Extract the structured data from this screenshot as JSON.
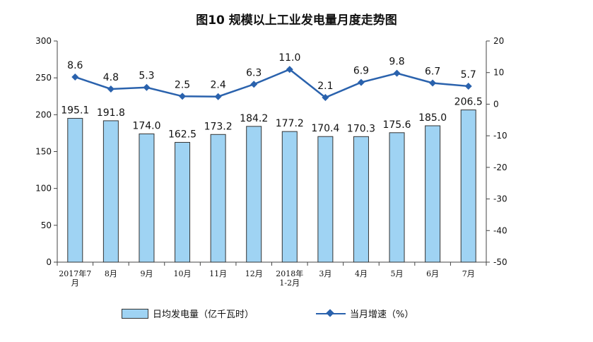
{
  "chart_data": {
    "type": "bar+line",
    "title": "图10  规模以上工业发电量月度走势图",
    "categories": [
      "2017年7月",
      "8月",
      "9月",
      "10月",
      "11月",
      "12月",
      "2018年1-2月",
      "3月",
      "4月",
      "5月",
      "6月",
      "7月"
    ],
    "category_lines": [
      [
        "2017年7",
        "月"
      ],
      [
        "8月"
      ],
      [
        "9月"
      ],
      [
        "10月"
      ],
      [
        "11月"
      ],
      [
        "12月"
      ],
      [
        "2018年",
        "1-2月"
      ],
      [
        "3月"
      ],
      [
        "4月"
      ],
      [
        "5月"
      ],
      [
        "6月"
      ],
      [
        "7月"
      ]
    ],
    "series": [
      {
        "name": "日均发电量（亿千瓦时）",
        "type": "bar",
        "axis": "left",
        "values": [
          195.1,
          191.8,
          174.0,
          162.5,
          173.2,
          184.2,
          177.2,
          170.4,
          170.3,
          175.6,
          185.0,
          206.5
        ],
        "labels": [
          "195.1",
          "191.8",
          "174.0",
          "162.5",
          "173.2",
          "184.2",
          "177.2",
          "170.4",
          "170.3",
          "175.6",
          "185.0",
          "206.5"
        ]
      },
      {
        "name": "当月增速（%）",
        "type": "line",
        "axis": "right",
        "values": [
          8.6,
          4.8,
          5.3,
          2.5,
          2.4,
          6.3,
          11.0,
          2.1,
          6.9,
          9.8,
          6.7,
          5.7
        ],
        "labels": [
          "8.6",
          "4.8",
          "5.3",
          "2.5",
          "2.4",
          "6.3",
          "11.0",
          "2.1",
          "6.9",
          "9.8",
          "6.7",
          "5.7"
        ]
      }
    ],
    "y_left": {
      "min": 0,
      "max": 300,
      "ticks": [
        "0",
        "50",
        "100",
        "150",
        "200",
        "250",
        "300"
      ]
    },
    "y_right": {
      "min": -50,
      "max": 20,
      "ticks": [
        "-50",
        "-40",
        "-30",
        "-20",
        "-10",
        "0",
        "10",
        "20"
      ]
    },
    "legend_position": "bottom",
    "grid": false,
    "colors": {
      "bar": "#9fd3f3",
      "bar_stroke": "#333333",
      "line": "#2a62ad"
    }
  }
}
